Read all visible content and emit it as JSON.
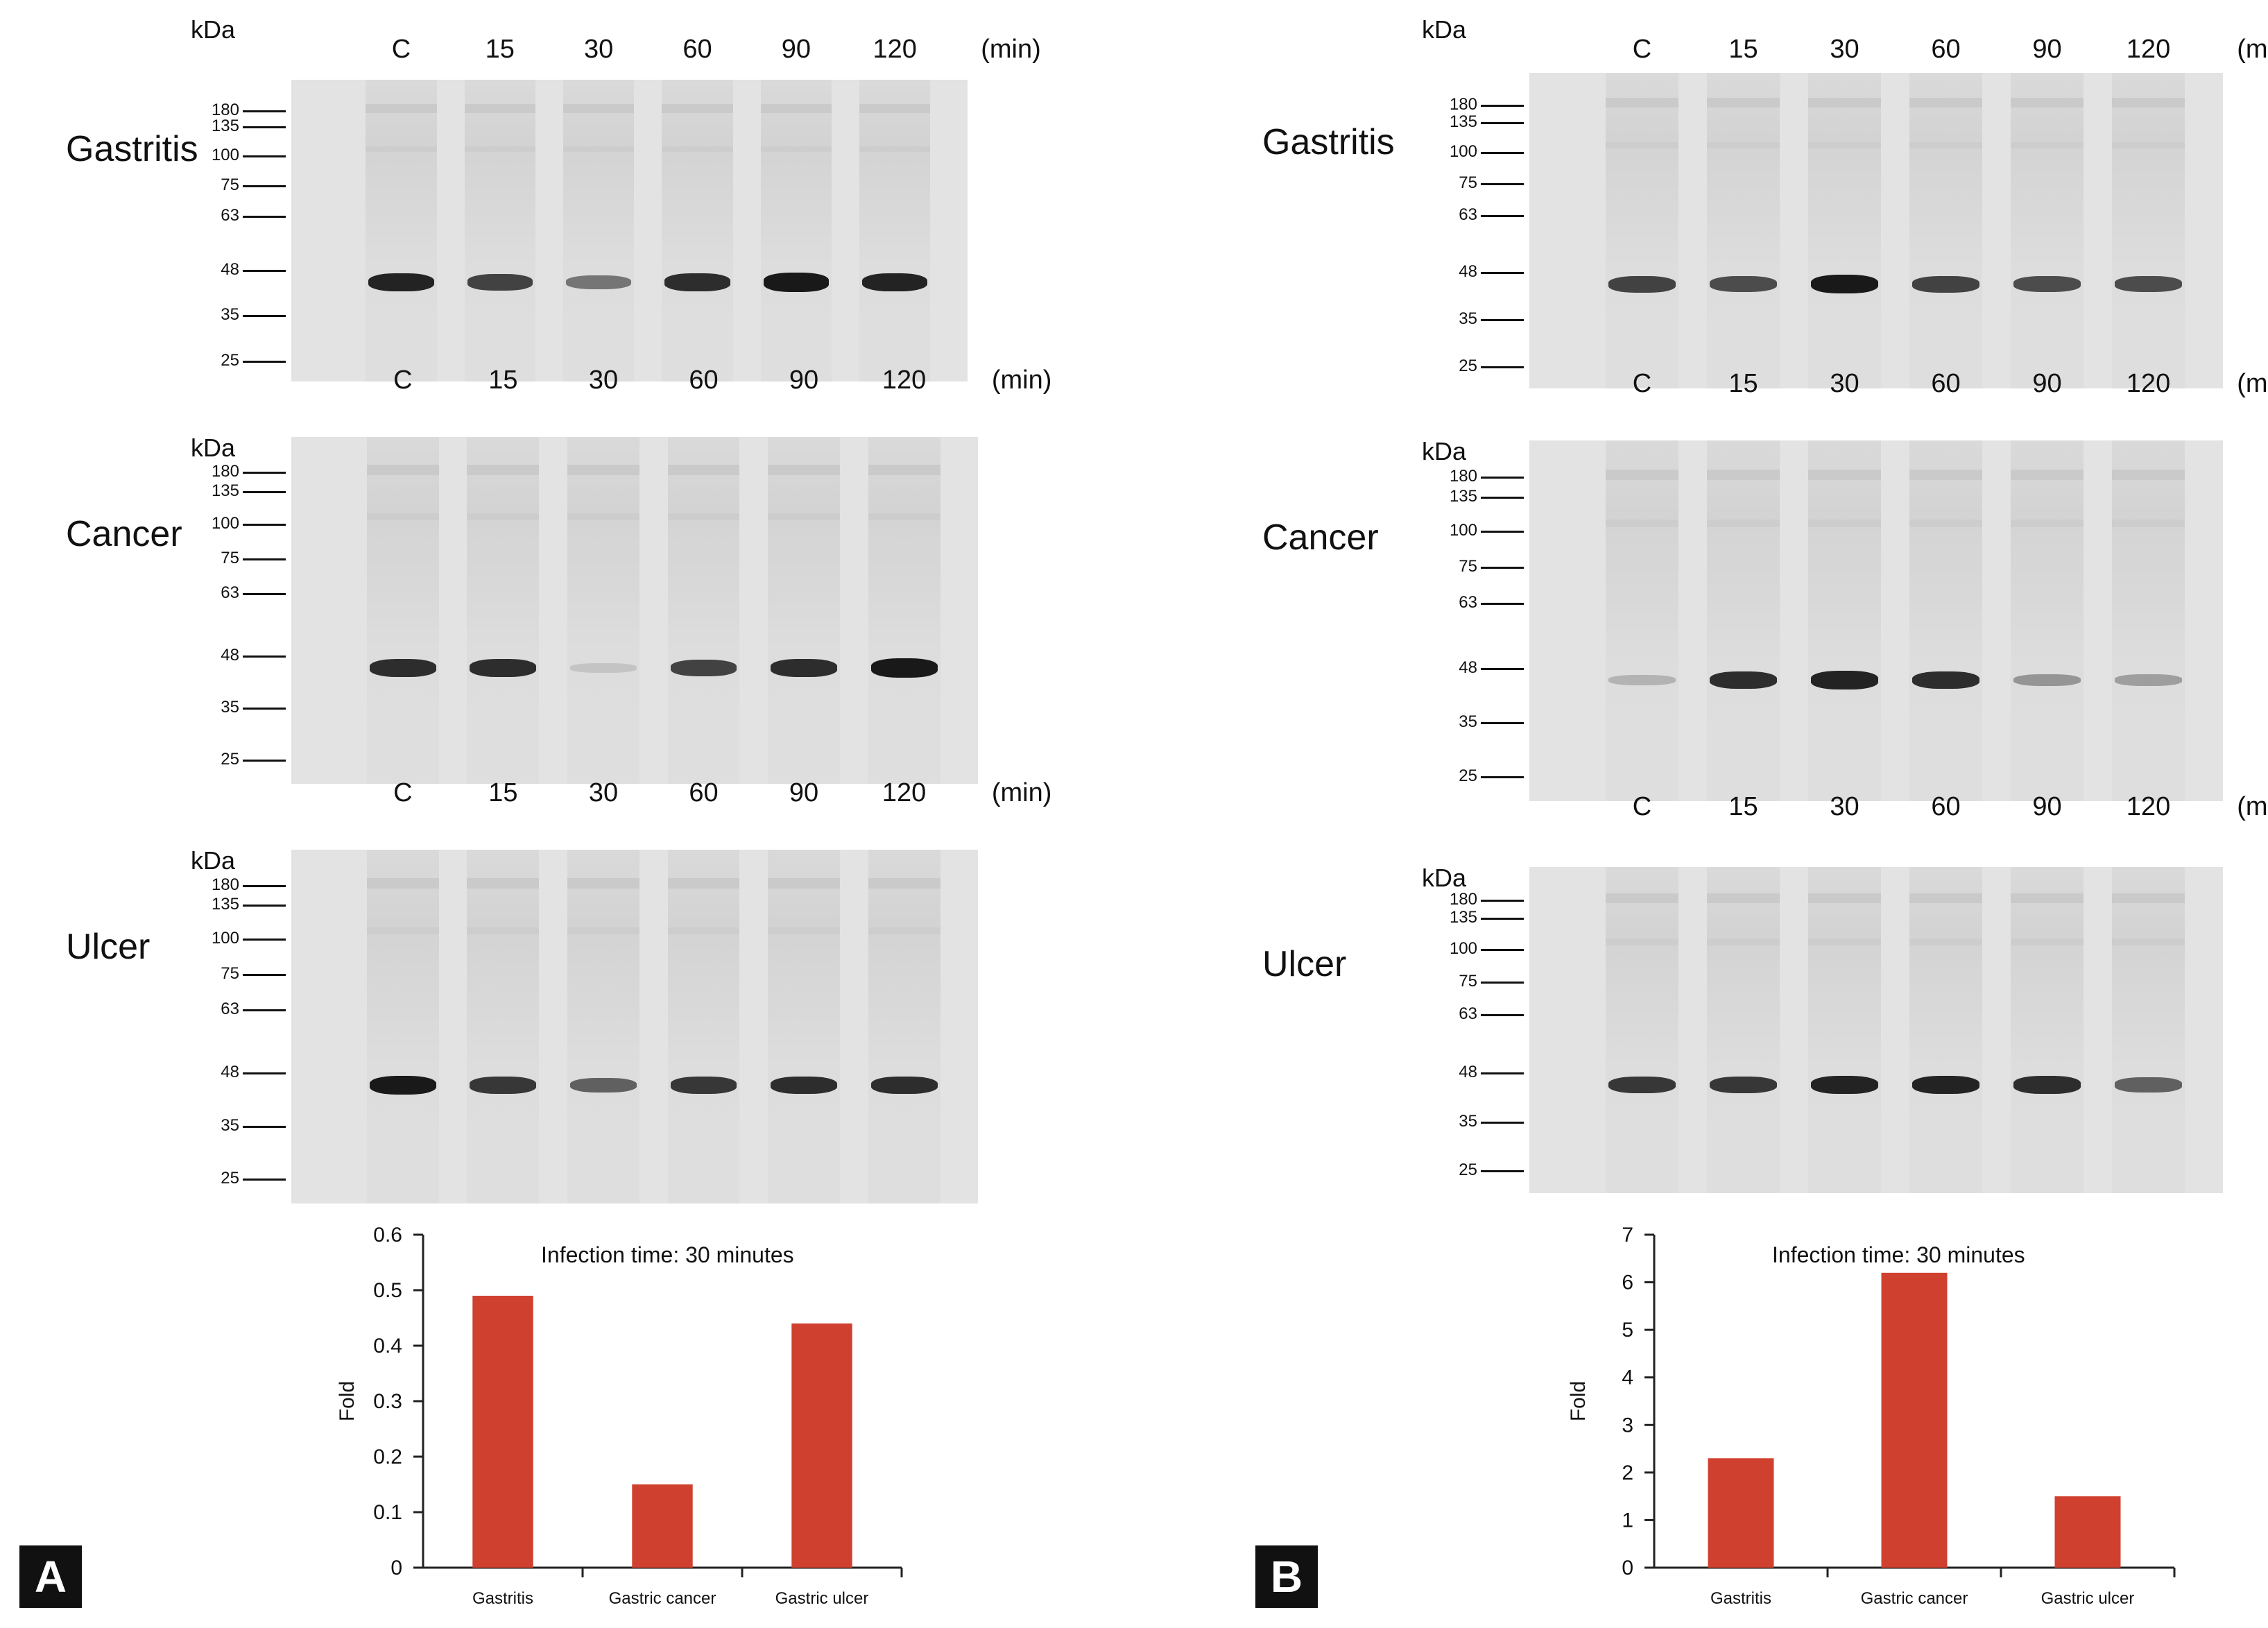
{
  "panels": [
    {
      "id": "A",
      "letter": "A",
      "blots": [
        {
          "tissue": "Gastritis",
          "timepoints": [
            "C",
            "15",
            "30",
            "60",
            "90",
            "120"
          ],
          "unit": "(min)",
          "kda_label": "kDa",
          "markers": [
            "180",
            "135",
            "100",
            "75",
            "63",
            "48",
            "35",
            "25"
          ],
          "band_intensity": [
            0.9,
            0.75,
            0.5,
            0.85,
            0.95,
            0.9
          ]
        },
        {
          "tissue": "Cancer",
          "timepoints": [
            "C",
            "15",
            "30",
            "60",
            "90",
            "120"
          ],
          "unit": "(min)",
          "kda_label": "kDa",
          "markers": [
            "180",
            "135",
            "100",
            "75",
            "63",
            "48",
            "35",
            "25"
          ],
          "band_intensity": [
            0.85,
            0.85,
            0.1,
            0.75,
            0.85,
            0.95
          ]
        },
        {
          "tissue": "Ulcer",
          "timepoints": [
            "C",
            "15",
            "30",
            "60",
            "90",
            "120"
          ],
          "unit": "(min)",
          "kda_label": "kDa",
          "markers": [
            "180",
            "135",
            "100",
            "75",
            "63",
            "48",
            "35",
            "25"
          ],
          "band_intensity": [
            0.95,
            0.8,
            0.6,
            0.8,
            0.85,
            0.85
          ]
        }
      ],
      "chart_data": {
        "type": "bar",
        "annotation": "Infection time: 30 minutes",
        "categories": [
          "Gastritis",
          "Gastric cancer",
          "Gastric ulcer"
        ],
        "values": [
          0.49,
          0.15,
          0.44
        ],
        "ylabel": "Fold",
        "ylim": [
          0,
          0.6
        ],
        "yticks": [
          "0",
          "0.1",
          "0.2",
          "0.3",
          "0.4",
          "0.5",
          "0.6"
        ],
        "bar_color": "#d0402f"
      }
    },
    {
      "id": "B",
      "letter": "B",
      "blots": [
        {
          "tissue": "Gastritis",
          "timepoints": [
            "C",
            "15",
            "30",
            "60",
            "90",
            "120"
          ],
          "unit": "(min)",
          "kda_label": "kDa",
          "markers": [
            "180",
            "135",
            "100",
            "75",
            "63",
            "48",
            "35",
            "25"
          ],
          "band_intensity": [
            0.75,
            0.7,
            0.95,
            0.75,
            0.7,
            0.7
          ]
        },
        {
          "tissue": "Cancer",
          "timepoints": [
            "C",
            "15",
            "30",
            "60",
            "90",
            "120"
          ],
          "unit": "(min)",
          "kda_label": "kDa",
          "markers": [
            "180",
            "135",
            "100",
            "75",
            "63",
            "48",
            "35",
            "25"
          ],
          "band_intensity": [
            0.2,
            0.85,
            0.9,
            0.85,
            0.35,
            0.3
          ]
        },
        {
          "tissue": "Ulcer",
          "timepoints": [
            "C",
            "15",
            "30",
            "60",
            "90",
            "120"
          ],
          "unit": "(min)",
          "kda_label": "kDa",
          "markers": [
            "180",
            "135",
            "100",
            "75",
            "63",
            "48",
            "35",
            "25"
          ],
          "band_intensity": [
            0.8,
            0.8,
            0.9,
            0.9,
            0.85,
            0.6
          ]
        }
      ],
      "chart_data": {
        "type": "bar",
        "annotation": "Infection time: 30 minutes",
        "categories": [
          "Gastritis",
          "Gastric cancer",
          "Gastric ulcer"
        ],
        "values": [
          2.3,
          6.2,
          1.5
        ],
        "ylabel": "Fold",
        "ylim": [
          0,
          7
        ],
        "yticks": [
          "0",
          "1",
          "2",
          "3",
          "4",
          "5",
          "6",
          "7"
        ],
        "bar_color": "#d0402f"
      }
    }
  ]
}
